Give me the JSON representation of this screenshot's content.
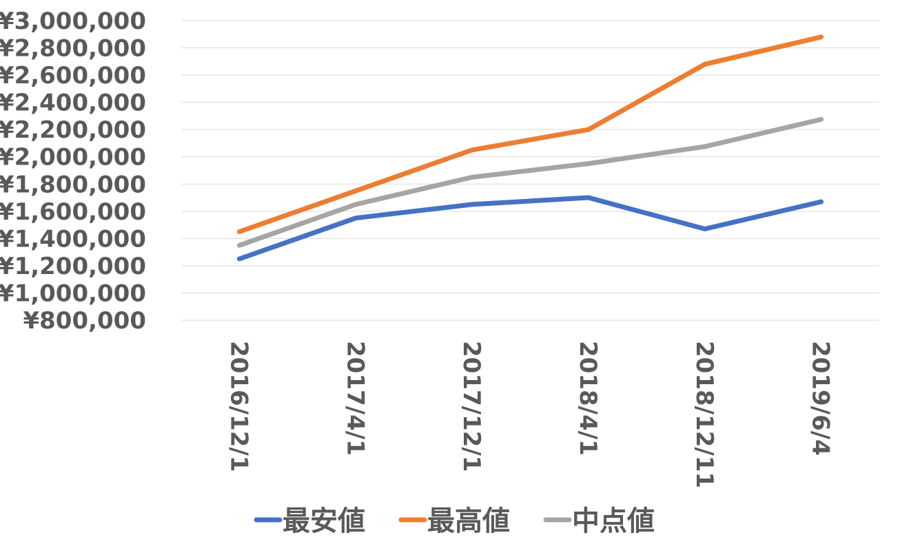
{
  "chart_data": {
    "type": "line",
    "title": "",
    "xlabel": "",
    "ylabel": "",
    "categories": [
      "2016/12/1",
      "2017/4/1",
      "2017/12/1",
      "2018/4/1",
      "2018/12/11",
      "2019/6/4"
    ],
    "ylim": [
      800000,
      3000000
    ],
    "y_ticks": [
      {
        "value": 800000,
        "label": "¥800,000"
      },
      {
        "value": 1000000,
        "label": "¥1,000,000"
      },
      {
        "value": 1200000,
        "label": "¥1,200,000"
      },
      {
        "value": 1400000,
        "label": "¥1,400,000"
      },
      {
        "value": 1600000,
        "label": "¥1,600,000"
      },
      {
        "value": 1800000,
        "label": "¥1,800,000"
      },
      {
        "value": 2000000,
        "label": "¥2,000,000"
      },
      {
        "value": 2200000,
        "label": "¥2,200,000"
      },
      {
        "value": 2400000,
        "label": "¥2,400,000"
      },
      {
        "value": 2600000,
        "label": "¥2,600,000"
      },
      {
        "value": 2800000,
        "label": "¥2,800,000"
      },
      {
        "value": 3000000,
        "label": "¥3,000,000"
      }
    ],
    "grid": true,
    "legend_position": "bottom",
    "series": [
      {
        "name": "最安値",
        "color": "#4472C4",
        "values": [
          1250000,
          1550000,
          1650000,
          1700000,
          1470000,
          1670000
        ]
      },
      {
        "name": "最高値",
        "color": "#ED7D31",
        "values": [
          1450000,
          1750000,
          2050000,
          2200000,
          2680000,
          2880000
        ]
      },
      {
        "name": "中点値",
        "color": "#A5A5A5",
        "values": [
          1350000,
          1650000,
          1850000,
          1950000,
          2075000,
          2275000
        ]
      }
    ]
  }
}
